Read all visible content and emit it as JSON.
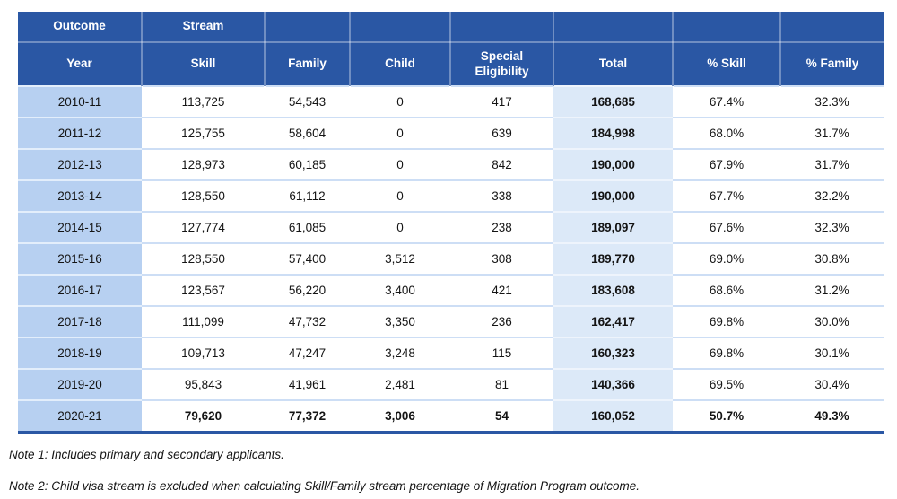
{
  "colors": {
    "header_bg": "#2a57a4",
    "year_column_bg": "#b7d0f1",
    "total_column_bg": "#dce9f8",
    "row_divider": "#cddef5"
  },
  "table": {
    "header_row1": [
      "Outcome",
      "Stream",
      "",
      "",
      "",
      "",
      "",
      ""
    ],
    "header_row2": [
      "Year",
      "Skill",
      "Family",
      "Child",
      "Special Eligibility",
      "Total",
      "% Skill",
      "% Family"
    ],
    "rows": [
      [
        "2010-11",
        "113,725",
        "54,543",
        "0",
        "417",
        "168,685",
        "67.4%",
        "32.3%"
      ],
      [
        "2011-12",
        "125,755",
        "58,604",
        "0",
        "639",
        "184,998",
        "68.0%",
        "31.7%"
      ],
      [
        "2012-13",
        "128,973",
        "60,185",
        "0",
        "842",
        "190,000",
        "67.9%",
        "31.7%"
      ],
      [
        "2013-14",
        "128,550",
        "61,112",
        "0",
        "338",
        "190,000",
        "67.7%",
        "32.2%"
      ],
      [
        "2014-15",
        "127,774",
        "61,085",
        "0",
        "238",
        "189,097",
        "67.6%",
        "32.3%"
      ],
      [
        "2015-16",
        "128,550",
        "57,400",
        "3,512",
        "308",
        "189,770",
        "69.0%",
        "30.8%"
      ],
      [
        "2016-17",
        "123,567",
        "56,220",
        "3,400",
        "421",
        "183,608",
        "68.6%",
        "31.2%"
      ],
      [
        "2017-18",
        "111,099",
        "47,732",
        "3,350",
        "236",
        "162,417",
        "69.8%",
        "30.0%"
      ],
      [
        "2018-19",
        "109,713",
        "47,247",
        "3,248",
        "115",
        "160,323",
        "69.8%",
        "30.1%"
      ],
      [
        "2019-20",
        "95,843",
        "41,961",
        "2,481",
        "81",
        "140,366",
        "69.5%",
        "30.4%"
      ],
      [
        "2020-21",
        "79,620",
        "77,372",
        "3,006",
        "54",
        "160,052",
        "50.7%",
        "49.3%"
      ]
    ]
  },
  "notes": [
    "Note 1: Includes primary and secondary applicants.",
    "Note 2: Child visa stream is excluded when calculating Skill/Family stream percentage of Migration Program outcome."
  ]
}
